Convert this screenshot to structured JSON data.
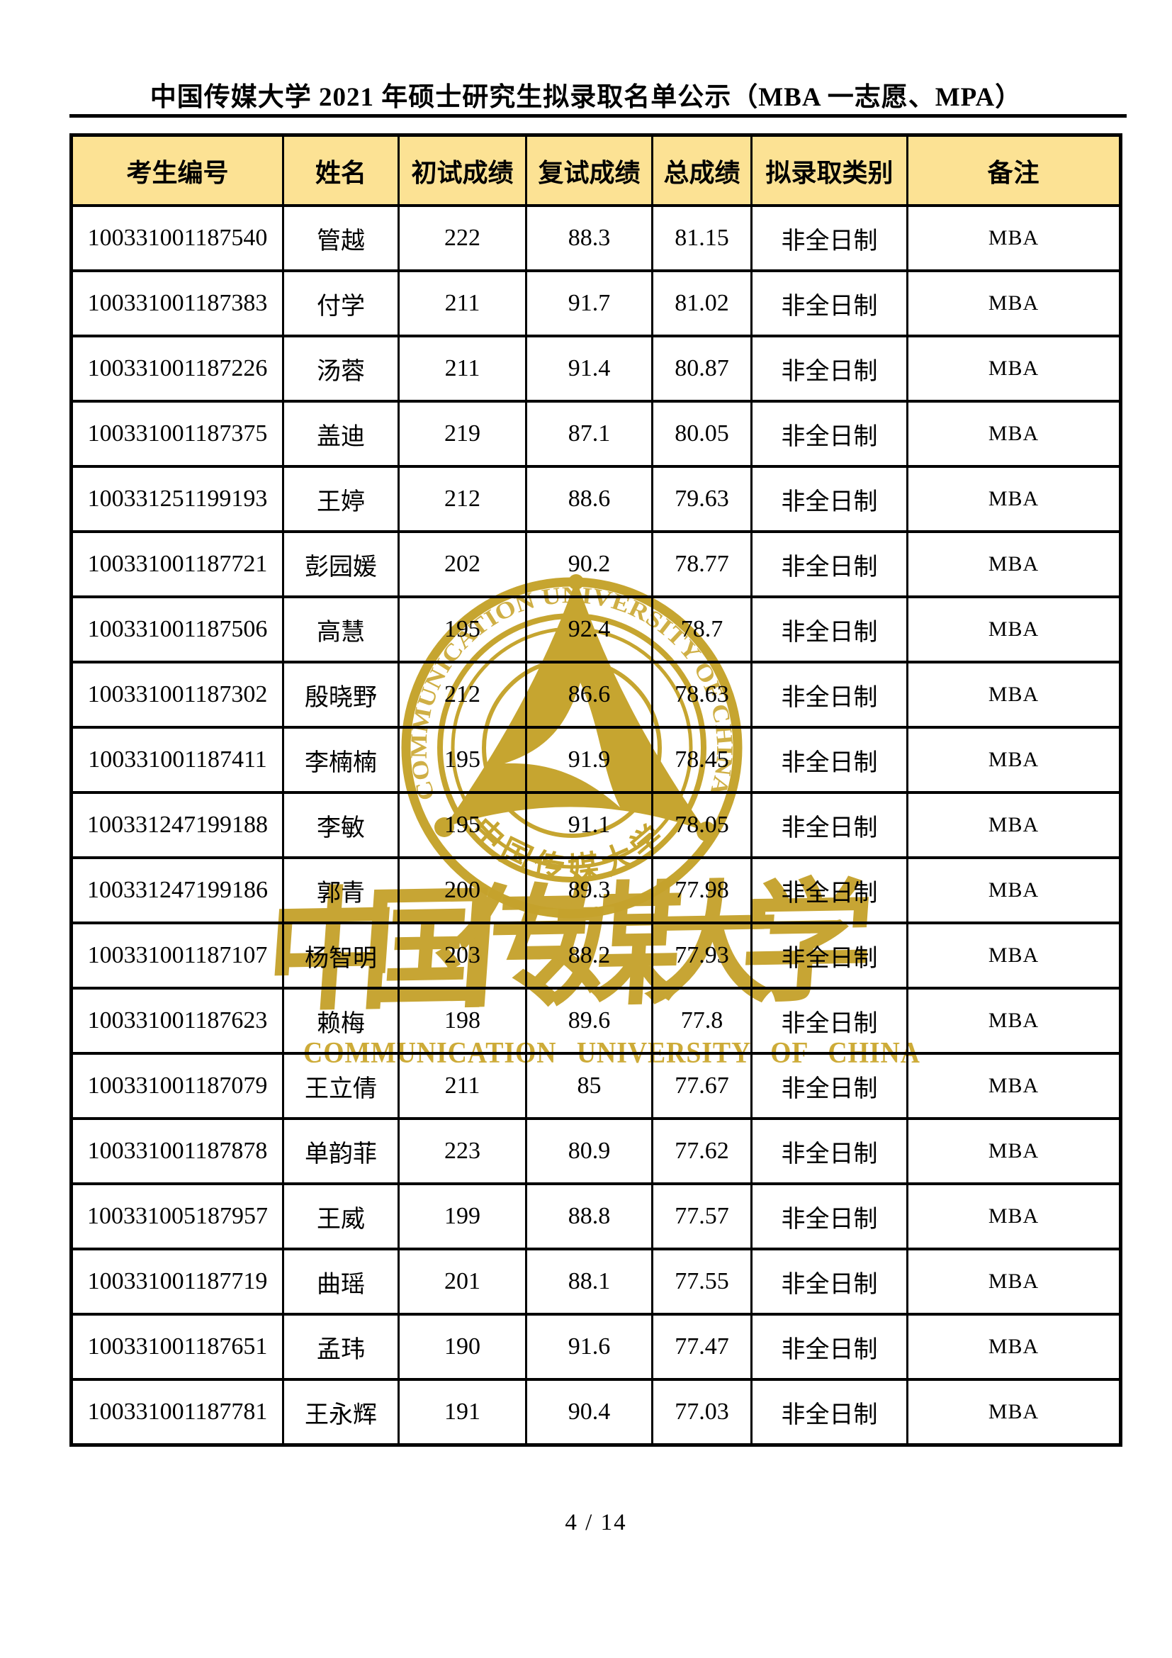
{
  "page": {
    "title": "中国传媒大学 2021 年硕士研究生拟录取名单公示（MBA 一志愿、MPA）",
    "page_number": "4 / 14"
  },
  "table": {
    "headers": [
      "考生编号",
      "姓名",
      "初试成绩",
      "复试成绩",
      "总成绩",
      "拟录取类别",
      "备注"
    ],
    "rows": [
      [
        "100331001187540",
        "管越",
        "222",
        "88.3",
        "81.15",
        "非全日制",
        "MBA"
      ],
      [
        "100331001187383",
        "付学",
        "211",
        "91.7",
        "81.02",
        "非全日制",
        "MBA"
      ],
      [
        "100331001187226",
        "汤蓉",
        "211",
        "91.4",
        "80.87",
        "非全日制",
        "MBA"
      ],
      [
        "100331001187375",
        "盖迪",
        "219",
        "87.1",
        "80.05",
        "非全日制",
        "MBA"
      ],
      [
        "100331251199193",
        "王婷",
        "212",
        "88.6",
        "79.63",
        "非全日制",
        "MBA"
      ],
      [
        "100331001187721",
        "彭园媛",
        "202",
        "90.2",
        "78.77",
        "非全日制",
        "MBA"
      ],
      [
        "100331001187506",
        "高慧",
        "195",
        "92.4",
        "78.7",
        "非全日制",
        "MBA"
      ],
      [
        "100331001187302",
        "殷晓野",
        "212",
        "86.6",
        "78.63",
        "非全日制",
        "MBA"
      ],
      [
        "100331001187411",
        "李楠楠",
        "195",
        "91.9",
        "78.45",
        "非全日制",
        "MBA"
      ],
      [
        "100331247199188",
        "李敏",
        "195",
        "91.1",
        "78.05",
        "非全日制",
        "MBA"
      ],
      [
        "100331247199186",
        "郭青",
        "200",
        "89.3",
        "77.98",
        "非全日制",
        "MBA"
      ],
      [
        "100331001187107",
        "杨智明",
        "203",
        "88.2",
        "77.93",
        "非全日制",
        "MBA"
      ],
      [
        "100331001187623",
        "赖梅",
        "198",
        "89.6",
        "77.8",
        "非全日制",
        "MBA"
      ],
      [
        "100331001187079",
        "王立倩",
        "211",
        "85",
        "77.67",
        "非全日制",
        "MBA"
      ],
      [
        "100331001187878",
        "单韵菲",
        "223",
        "80.9",
        "77.62",
        "非全日制",
        "MBA"
      ],
      [
        "100331005187957",
        "王威",
        "199",
        "88.8",
        "77.57",
        "非全日制",
        "MBA"
      ],
      [
        "100331001187719",
        "曲瑶",
        "201",
        "88.1",
        "77.55",
        "非全日制",
        "MBA"
      ],
      [
        "100331001187651",
        "孟玮",
        "190",
        "91.6",
        "77.47",
        "非全日制",
        "MBA"
      ],
      [
        "100331001187781",
        "王永辉",
        "191",
        "90.4",
        "77.03",
        "非全日制",
        "MBA"
      ]
    ]
  },
  "watermark": {
    "seal_ring_text": "COMMUNICATION UNIVERSITY OF CHINA",
    "seal_bottom_text": "中国传媒大学",
    "calligraphy_text": "中国传媒大学",
    "latin_text": "COMMUNICATION UNIVERSITY OF CHINA",
    "gold": "#C6A530"
  },
  "colors": {
    "header_bg": "#FCE294",
    "border": "#000000",
    "watermark_gold": "#C6A530"
  }
}
